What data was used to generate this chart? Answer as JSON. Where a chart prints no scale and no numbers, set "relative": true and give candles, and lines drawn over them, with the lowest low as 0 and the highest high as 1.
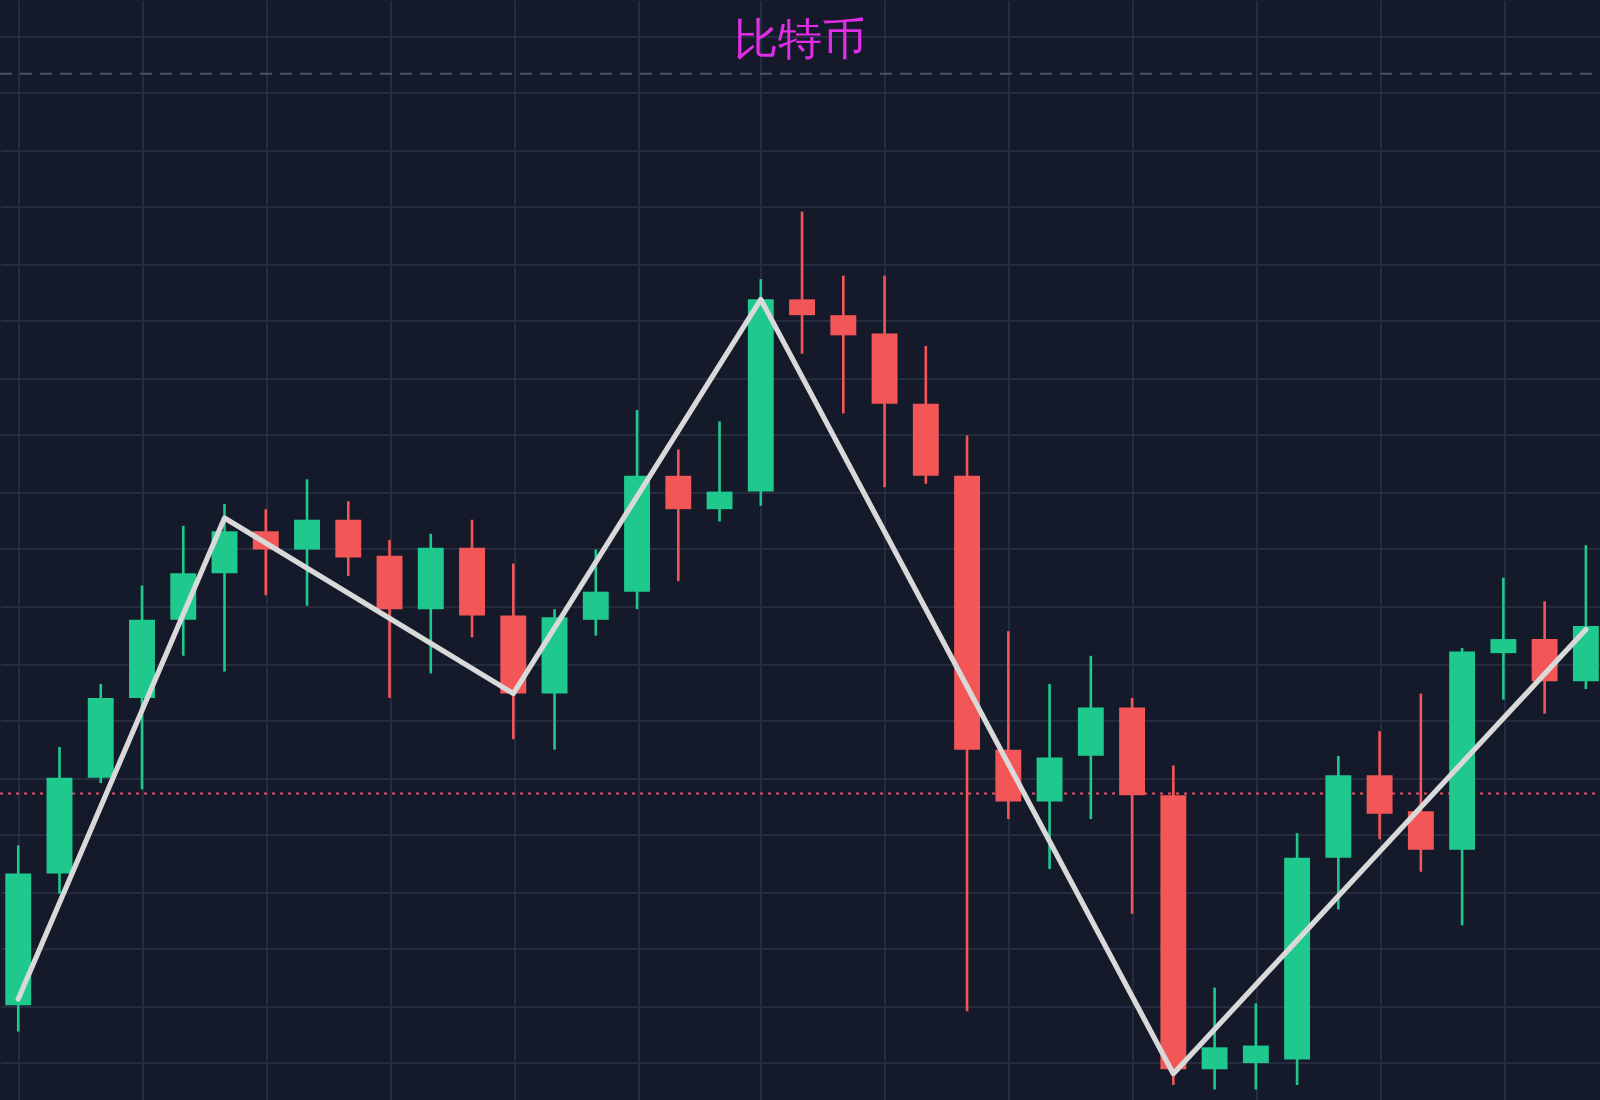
{
  "chart_data": {
    "type": "candlestick",
    "title": "比特币",
    "relative": true,
    "categories": [
      null,
      null,
      null,
      null,
      null,
      null,
      null,
      null,
      null,
      null,
      null,
      null,
      null,
      null,
      null,
      null,
      null,
      null,
      null,
      null,
      null,
      null,
      null,
      null,
      null,
      null,
      null,
      null,
      null,
      null,
      null,
      null,
      null,
      null,
      null,
      null,
      null,
      null,
      null
    ],
    "ohlc": [
      [
        0.096,
        0.278,
        0.066,
        0.246
      ],
      [
        0.246,
        0.39,
        0.223,
        0.355
      ],
      [
        0.355,
        0.462,
        0.349,
        0.446
      ],
      [
        0.446,
        0.574,
        0.342,
        0.535
      ],
      [
        0.535,
        0.642,
        0.494,
        0.588
      ],
      [
        0.588,
        0.667,
        0.476,
        0.636
      ],
      [
        0.636,
        0.661,
        0.563,
        0.615
      ],
      [
        0.615,
        0.695,
        0.551,
        0.649
      ],
      [
        0.649,
        0.67,
        0.585,
        0.606
      ],
      [
        0.608,
        0.626,
        0.446,
        0.547
      ],
      [
        0.547,
        0.633,
        0.474,
        0.617
      ],
      [
        0.617,
        0.649,
        0.515,
        0.54
      ],
      [
        0.54,
        0.599,
        0.399,
        0.451
      ],
      [
        0.451,
        0.547,
        0.387,
        0.538
      ],
      [
        0.535,
        0.615,
        0.517,
        0.567
      ],
      [
        0.567,
        0.774,
        0.547,
        0.699
      ],
      [
        0.699,
        0.729,
        0.579,
        0.661
      ],
      [
        0.661,
        0.761,
        0.647,
        0.681
      ],
      [
        0.681,
        0.923,
        0.665,
        0.9
      ],
      [
        0.9,
        1.0,
        0.838,
        0.882
      ],
      [
        0.882,
        0.927,
        0.77,
        0.859
      ],
      [
        0.861,
        0.927,
        0.686,
        0.781
      ],
      [
        0.781,
        0.847,
        0.69,
        0.699
      ],
      [
        0.699,
        0.745,
        0.089,
        0.387
      ],
      [
        0.387,
        0.522,
        0.308,
        0.328
      ],
      [
        0.328,
        0.462,
        0.251,
        0.378
      ],
      [
        0.38,
        0.494,
        0.308,
        0.435
      ],
      [
        0.435,
        0.446,
        0.2,
        0.335
      ],
      [
        0.335,
        0.369,
        0.005,
        0.023
      ],
      [
        0.023,
        0.116,
        0.0,
        0.048
      ],
      [
        0.03,
        0.098,
        0.0,
        0.05
      ],
      [
        0.034,
        0.292,
        0.005,
        0.264
      ],
      [
        0.264,
        0.38,
        0.205,
        0.358
      ],
      [
        0.358,
        0.408,
        0.285,
        0.314
      ],
      [
        0.317,
        0.451,
        0.248,
        0.273
      ],
      [
        0.273,
        0.503,
        0.187,
        0.499
      ],
      [
        0.497,
        0.583,
        0.444,
        0.513
      ],
      [
        0.513,
        0.556,
        0.428,
        0.465
      ],
      [
        0.465,
        0.62,
        0.456,
        0.528
      ]
    ],
    "colors": [
      "#1fc98e",
      "#1fc98e",
      "#1fc98e",
      "#1fc98e",
      "#1fc98e",
      "#1fc98e",
      "#f25656",
      "#1fc98e",
      "#f25656",
      "#f25656",
      "#1fc98e",
      "#f25656",
      "#f25656",
      "#1fc98e",
      "#1fc98e",
      "#1fc98e",
      "#f25656",
      "#1fc98e",
      "#1fc98e",
      "#f25656",
      "#f25656",
      "#f25656",
      "#f25656",
      "#f25656",
      "#f25656",
      "#1fc98e",
      "#1fc98e",
      "#f25656",
      "#f25656",
      "#1fc98e",
      "#1fc98e",
      "#1fc98e",
      "#1fc98e",
      "#f25656",
      "#f25656",
      "#1fc98e",
      "#1fc98e",
      "#f25656",
      "#1fc98e"
    ],
    "series": [
      {
        "type": "line",
        "color": "#d9d9d9",
        "values": [
          0.103,
          null,
          null,
          null,
          null,
          0.651,
          null,
          null,
          null,
          null,
          null,
          null,
          0.451,
          null,
          null,
          null,
          null,
          null,
          0.9,
          null,
          null,
          null,
          null,
          null,
          null,
          null,
          null,
          null,
          0.018,
          null,
          null,
          null,
          null,
          null,
          null,
          null,
          null,
          null,
          0.524
        ]
      }
    ],
    "ref_lines": [
      {
        "axis": "y",
        "value": 0.337,
        "color": "#d9536b",
        "line_style": "dotted"
      },
      {
        "axis": "y",
        "value": 1.157,
        "color": "#4a5068",
        "line_style": "dashed"
      }
    ],
    "grid": true,
    "marker": "none",
    "line_style": "solid"
  }
}
